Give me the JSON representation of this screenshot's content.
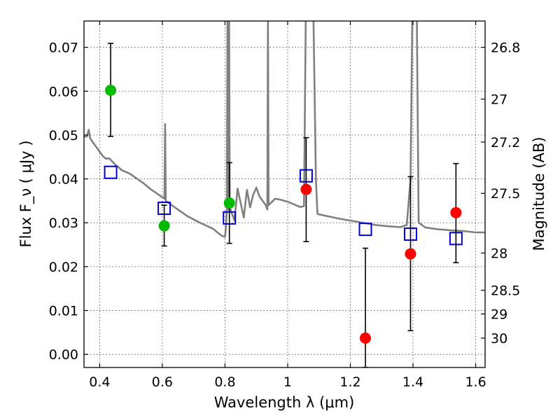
{
  "chart_data": {
    "type": "scatter",
    "xlabel": "Wavelength λ (μm)",
    "ylabel": "Flux F_ν ( μJy )",
    "ylabel_right": "Magnitude (AB)",
    "xlim": [
      0.35,
      1.63
    ],
    "ylim": [
      -0.003,
      0.076
    ],
    "grid": true,
    "x_ticks": [
      0.4,
      0.6,
      0.8,
      1.0,
      1.2,
      1.4,
      1.6
    ],
    "x_tick_labels": [
      "0.4",
      "0.6",
      "0.8",
      "1",
      "1.2",
      "1.4",
      "1.6"
    ],
    "y_ticks": [
      0.0,
      0.01,
      0.02,
      0.03,
      0.04,
      0.05,
      0.06,
      0.07
    ],
    "y_tick_labels": [
      "0.00",
      "0.01",
      "0.02",
      "0.03",
      "0.04",
      "0.05",
      "0.06",
      "0.07"
    ],
    "right_ticks": [
      {
        "label": "26.8",
        "flux": 0.07
      },
      {
        "label": "27",
        "flux": 0.0582
      },
      {
        "label": "27.2",
        "flux": 0.0484
      },
      {
        "label": "27.5",
        "flux": 0.0367
      },
      {
        "label": "28",
        "flux": 0.0231
      },
      {
        "label": "28.5",
        "flux": 0.0146
      },
      {
        "label": "29",
        "flux": 0.0092
      },
      {
        "label": "30",
        "flux": 0.0037
      }
    ],
    "series": [
      {
        "marker": "circle",
        "color": "#00bb00",
        "points": [
          {
            "x": 0.435,
            "y": 0.0602,
            "err_low": 0.0497,
            "err_high": 0.0709
          },
          {
            "x": 0.606,
            "y": 0.0293,
            "err_low": 0.0247,
            "err_high": 0.034
          },
          {
            "x": 0.814,
            "y": 0.0345,
            "err_low": 0.0253,
            "err_high": 0.0437
          }
        ]
      },
      {
        "marker": "circle",
        "color": "#ff0000",
        "points": [
          {
            "x": 1.059,
            "y": 0.0376,
            "err_low": 0.0257,
            "err_high": 0.0494
          },
          {
            "x": 1.248,
            "y": 0.0037,
            "err_low": -0.003,
            "err_high": 0.0242
          },
          {
            "x": 1.392,
            "y": 0.0229,
            "err_low": 0.0054,
            "err_high": 0.0405
          },
          {
            "x": 1.537,
            "y": 0.0323,
            "err_low": 0.0209,
            "err_high": 0.0435
          }
        ]
      },
      {
        "marker": "open-square",
        "color": "#0000dd",
        "points": [
          {
            "x": 0.435,
            "y": 0.0415
          },
          {
            "x": 0.606,
            "y": 0.0333
          },
          {
            "x": 0.814,
            "y": 0.0311
          },
          {
            "x": 1.059,
            "y": 0.0407
          },
          {
            "x": 1.248,
            "y": 0.0285
          },
          {
            "x": 1.392,
            "y": 0.0274
          },
          {
            "x": 1.537,
            "y": 0.0264
          }
        ]
      },
      {
        "marker": "line",
        "color": "#808080",
        "points": [
          [
            0.35,
            0.0496
          ],
          [
            0.36,
            0.0497
          ],
          [
            0.365,
            0.0512
          ],
          [
            0.37,
            0.0492
          ],
          [
            0.38,
            0.0482
          ],
          [
            0.39,
            0.0472
          ],
          [
            0.4,
            0.0462
          ],
          [
            0.41,
            0.0452
          ],
          [
            0.42,
            0.0446
          ],
          [
            0.43,
            0.0447
          ],
          [
            0.44,
            0.044
          ],
          [
            0.45,
            0.0432
          ],
          [
            0.46,
            0.0427
          ],
          [
            0.47,
            0.042
          ],
          [
            0.48,
            0.0417
          ],
          [
            0.49,
            0.0414
          ],
          [
            0.5,
            0.041
          ],
          [
            0.52,
            0.04
          ],
          [
            0.54,
            0.039
          ],
          [
            0.56,
            0.0378
          ],
          [
            0.58,
            0.0368
          ],
          [
            0.6,
            0.0358
          ],
          [
            0.607,
            0.0355
          ],
          [
            0.609,
            0.0525
          ],
          [
            0.611,
            0.035
          ],
          [
            0.64,
            0.0335
          ],
          [
            0.68,
            0.0315
          ],
          [
            0.72,
            0.03
          ],
          [
            0.76,
            0.0287
          ],
          [
            0.79,
            0.027
          ],
          [
            0.8,
            0.0268
          ],
          [
            0.803,
            0.029
          ],
          [
            0.806,
            0.033
          ],
          [
            0.808,
            0.078
          ],
          [
            0.81,
            0.033
          ],
          [
            0.813,
            0.078
          ],
          [
            0.815,
            0.0335
          ],
          [
            0.83,
            0.0305
          ],
          [
            0.84,
            0.0378
          ],
          [
            0.85,
            0.0345
          ],
          [
            0.86,
            0.0312
          ],
          [
            0.87,
            0.0375
          ],
          [
            0.88,
            0.0335
          ],
          [
            0.89,
            0.0364
          ],
          [
            0.9,
            0.038
          ],
          [
            0.91,
            0.036
          ],
          [
            0.92,
            0.035
          ],
          [
            0.93,
            0.034
          ],
          [
            0.935,
            0.033
          ],
          [
            0.937,
            0.078
          ],
          [
            0.939,
            0.034
          ],
          [
            0.96,
            0.0355
          ],
          [
            0.98,
            0.0352
          ],
          [
            1.0,
            0.0348
          ],
          [
            1.02,
            0.0342
          ],
          [
            1.04,
            0.0336
          ],
          [
            1.052,
            0.0338
          ],
          [
            1.058,
            0.078
          ],
          [
            1.082,
            0.078
          ],
          [
            1.09,
            0.04
          ],
          [
            1.095,
            0.032
          ],
          [
            1.12,
            0.0316
          ],
          [
            1.16,
            0.031
          ],
          [
            1.2,
            0.0305
          ],
          [
            1.24,
            0.03
          ],
          [
            1.28,
            0.0295
          ],
          [
            1.32,
            0.0292
          ],
          [
            1.36,
            0.029
          ],
          [
            1.38,
            0.0295
          ],
          [
            1.392,
            0.04
          ],
          [
            1.398,
            0.078
          ],
          [
            1.412,
            0.078
          ],
          [
            1.418,
            0.03
          ],
          [
            1.44,
            0.0289
          ],
          [
            1.48,
            0.0285
          ],
          [
            1.52,
            0.0283
          ],
          [
            1.56,
            0.0281
          ],
          [
            1.6,
            0.0278
          ],
          [
            1.63,
            0.0278
          ]
        ]
      }
    ]
  }
}
